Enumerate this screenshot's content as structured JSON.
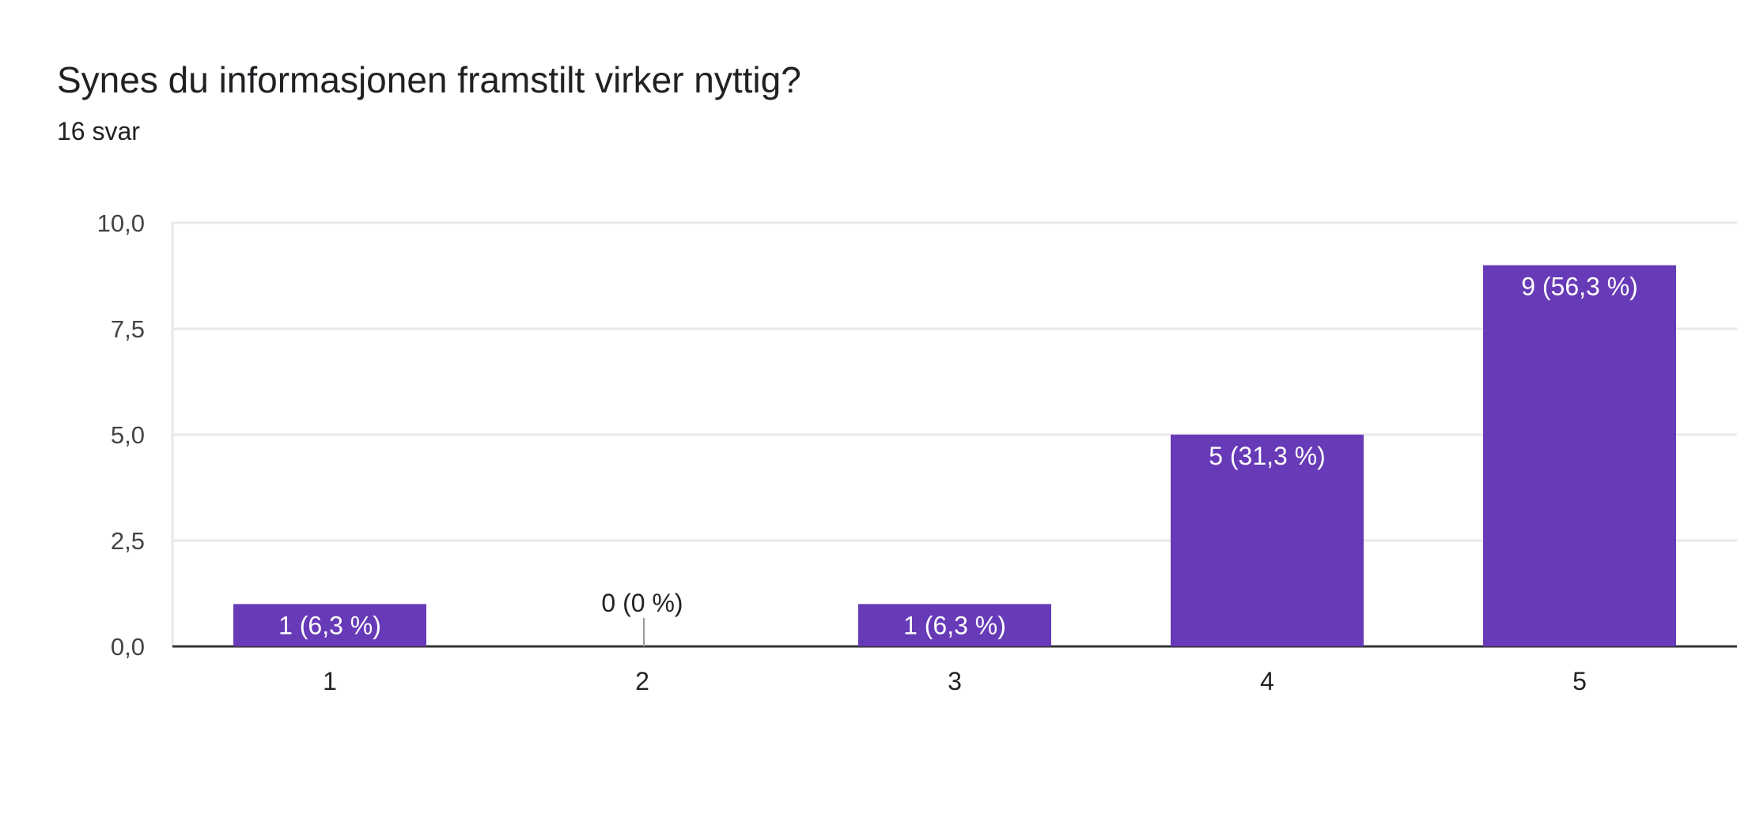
{
  "question": {
    "title": "Synes du informasjonen framstilt virker nyttig?",
    "response_count": "16 svar"
  },
  "colors": {
    "bar": "#673ab7",
    "gridline": "#e8e8e8",
    "baseline": "#333333",
    "bar_label_inside": "#ffffff",
    "bar_label_outside": "#222222"
  },
  "chart_data": {
    "type": "bar",
    "title": "Synes du informasjonen framstilt virker nyttig?",
    "subtitle": "16 svar",
    "categories": [
      "1",
      "2",
      "3",
      "4",
      "5"
    ],
    "values": [
      1,
      0,
      1,
      5,
      9
    ],
    "data_labels": [
      "1 (6,3 %)",
      "0 (0 %)",
      "1 (6,3 %)",
      "5 (31,3 %)",
      "9 (56,3 %)"
    ],
    "ylim": [
      0,
      10
    ],
    "yticks": [
      0,
      2.5,
      5,
      7.5,
      10
    ],
    "ytick_labels": [
      "0,0",
      "2,5",
      "5,0",
      "7,5",
      "10,0"
    ],
    "xlabel": "",
    "ylabel": "",
    "grid": true,
    "legend": "none"
  }
}
